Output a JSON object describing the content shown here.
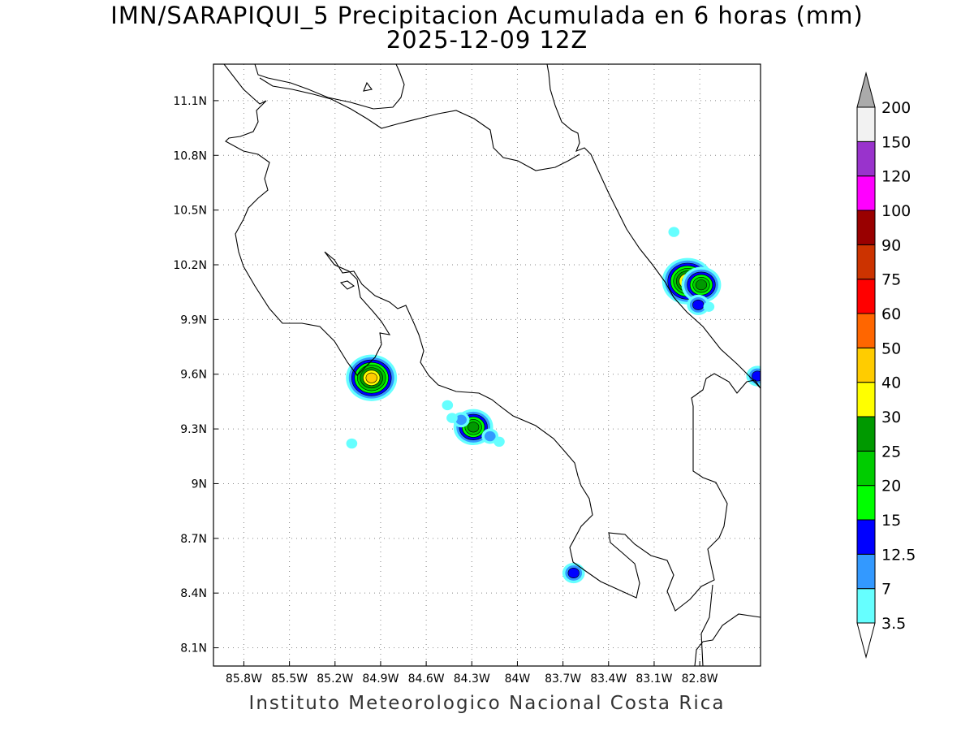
{
  "title": {
    "line1": "IMN/SARAPIQUI_5 Precipitacion Acumulada en 6 horas (mm)",
    "line2": "2025-12-09 12Z"
  },
  "footer": "Instituto Meteorologico Nacional Costa Rica",
  "map": {
    "lon_range": [
      -86.0,
      -82.4
    ],
    "lat_range": [
      8.0,
      11.3
    ],
    "lon_ticks": [
      {
        "value": -85.8,
        "label": "85.8W"
      },
      {
        "value": -85.5,
        "label": "85.5W"
      },
      {
        "value": -85.2,
        "label": "85.2W"
      },
      {
        "value": -84.9,
        "label": "84.9W"
      },
      {
        "value": -84.6,
        "label": "84.6W"
      },
      {
        "value": -84.3,
        "label": "84.3W"
      },
      {
        "value": -84.0,
        "label": "84W"
      },
      {
        "value": -83.7,
        "label": "83.7W"
      },
      {
        "value": -83.4,
        "label": "83.4W"
      },
      {
        "value": -83.1,
        "label": "83.1W"
      },
      {
        "value": -82.8,
        "label": "82.8W"
      }
    ],
    "lat_ticks": [
      {
        "value": 8.1,
        "label": "8.1N"
      },
      {
        "value": 8.4,
        "label": "8.4N"
      },
      {
        "value": 8.7,
        "label": "8.7N"
      },
      {
        "value": 9.0,
        "label": "9N"
      },
      {
        "value": 9.3,
        "label": "9.3N"
      },
      {
        "value": 9.6,
        "label": "9.6N"
      },
      {
        "value": 9.9,
        "label": "9.9N"
      },
      {
        "value": 10.2,
        "label": "10.2N"
      },
      {
        "value": 10.5,
        "label": "10.5N"
      },
      {
        "value": 10.8,
        "label": "10.8N"
      },
      {
        "value": 11.1,
        "label": "11.1N"
      }
    ],
    "grid": "dotted",
    "rain_cells": [
      {
        "lon": -84.96,
        "lat": 9.58,
        "max_mm": 40
      },
      {
        "lon": -82.88,
        "lat": 10.11,
        "max_mm": 40
      },
      {
        "lon": -82.79,
        "lat": 10.09,
        "max_mm": 25
      },
      {
        "lon": -84.29,
        "lat": 9.31,
        "max_mm": 25
      },
      {
        "lon": -83.63,
        "lat": 8.51,
        "max_mm": 12.5
      },
      {
        "lon": -82.42,
        "lat": 9.59,
        "max_mm": 12.5
      },
      {
        "lon": -84.18,
        "lat": 9.26,
        "max_mm": 7
      },
      {
        "lon": -84.12,
        "lat": 9.23,
        "max_mm": 3.5
      },
      {
        "lon": -84.37,
        "lat": 9.35,
        "max_mm": 7
      },
      {
        "lon": -84.43,
        "lat": 9.36,
        "max_mm": 3.5
      },
      {
        "lon": -84.46,
        "lat": 9.43,
        "max_mm": 3.5
      },
      {
        "lon": -82.97,
        "lat": 10.38,
        "max_mm": 3.5
      },
      {
        "lon": -82.81,
        "lat": 9.98,
        "max_mm": 12.5
      },
      {
        "lon": -82.74,
        "lat": 9.97,
        "max_mm": 3.5
      },
      {
        "lon": -85.09,
        "lat": 9.22,
        "max_mm": 3.5
      }
    ]
  },
  "colorbar": {
    "levels": [
      {
        "label": "3.5",
        "value": 3.5,
        "color": "#66ffff"
      },
      {
        "label": "7",
        "value": 7,
        "color": "#3399ff"
      },
      {
        "label": "12.5",
        "value": 12.5,
        "color": "#0000ff"
      },
      {
        "label": "15",
        "value": 15,
        "color": "#00ff00"
      },
      {
        "label": "20",
        "value": 20,
        "color": "#00cc00"
      },
      {
        "label": "25",
        "value": 25,
        "color": "#009900"
      },
      {
        "label": "30",
        "value": 30,
        "color": "#ffff00"
      },
      {
        "label": "40",
        "value": 40,
        "color": "#ffcc00"
      },
      {
        "label": "50",
        "value": 50,
        "color": "#ff6600"
      },
      {
        "label": "60",
        "value": 60,
        "color": "#ff0000"
      },
      {
        "label": "75",
        "value": 75,
        "color": "#cc3300"
      },
      {
        "label": "90",
        "value": 90,
        "color": "#990000"
      },
      {
        "label": "100",
        "value": 100,
        "color": "#ff00ff"
      },
      {
        "label": "120",
        "value": 120,
        "color": "#9933cc"
      },
      {
        "label": "150",
        "value": 150,
        "color": "#f2f2f2"
      },
      {
        "label": "200",
        "value": 200,
        "color": "#aaaaaa"
      }
    ],
    "under_color": "#ffffff",
    "over_color": "#aaaaaa"
  }
}
